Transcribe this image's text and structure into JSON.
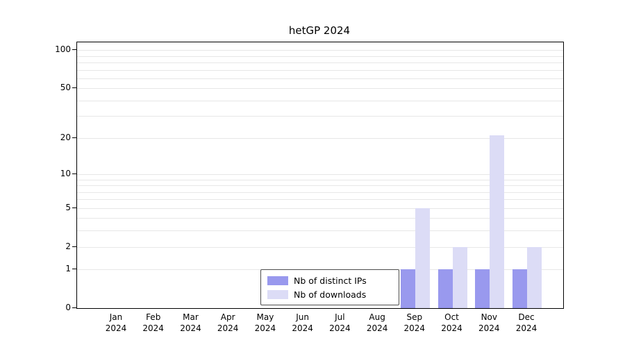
{
  "figure": {
    "title": "hetGP 2024"
  },
  "chart_data": {
    "type": "bar",
    "title": "hetGP 2024",
    "x_label_year": "2024",
    "categories": [
      "Jan",
      "Feb",
      "Mar",
      "Apr",
      "May",
      "Jun",
      "Jul",
      "Aug",
      "Sep",
      "Oct",
      "Nov",
      "Dec"
    ],
    "series": [
      {
        "name": "Nb of distinct IPs",
        "color": "#9999ee",
        "values": [
          0,
          0,
          0,
          0,
          0,
          0,
          0,
          0,
          1,
          1,
          1,
          1
        ]
      },
      {
        "name": "Nb of downloads",
        "color": "#dcdcf6",
        "values": [
          0,
          0,
          0,
          0,
          0,
          0,
          0,
          0,
          5,
          2,
          21,
          2
        ]
      }
    ],
    "y_ticks": [
      0,
      1,
      2,
      5,
      10,
      20,
      50,
      100
    ],
    "y_gridlines": [
      1,
      2,
      3,
      4,
      5,
      6,
      7,
      8,
      9,
      10,
      20,
      30,
      40,
      50,
      60,
      70,
      80,
      90,
      100
    ],
    "y_scale": "log1p",
    "ylim": [
      0,
      115
    ],
    "xlabel": "",
    "ylabel": "",
    "grid": true,
    "legend_position": "bottom-center-inside",
    "colors": {
      "grid": "#e7e7e7",
      "axis": "#000000",
      "background": "#ffffff"
    }
  }
}
